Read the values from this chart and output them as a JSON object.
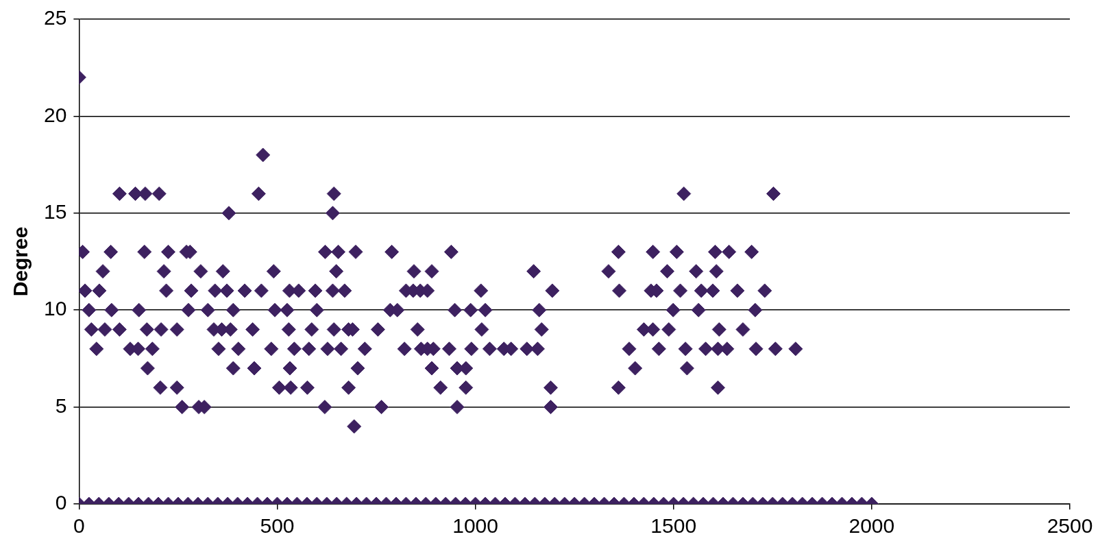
{
  "chart_data": {
    "type": "scatter",
    "ylabel": "Degree",
    "xlim": [
      0,
      2500
    ],
    "xticks": [
      0,
      500,
      1000,
      1500,
      2000,
      2500
    ],
    "ylim": [
      0,
      25
    ],
    "yticks": [
      0,
      5,
      10,
      15,
      20,
      25
    ],
    "grid": "y",
    "marker": "diamond",
    "legend": false,
    "series": [
      {
        "color": "#3d2160",
        "x": [
          0,
          464,
          102,
          142,
          167,
          202,
          453,
          643,
          1526,
          1752,
          378,
          640,
          9,
          80,
          165,
          225,
          271,
          280,
          621,
          654,
          698,
          789,
          939,
          1361,
          1448,
          1508,
          1605,
          1640,
          1697,
          60,
          214,
          307,
          363,
          491,
          649,
          845,
          890,
          1147,
          1336,
          1484,
          1557,
          1608,
          15,
          51,
          220,
          283,
          343,
          373,
          418,
          460,
          531,
          554,
          596,
          640,
          670,
          825,
          843,
          861,
          879,
          1014,
          1194,
          1363,
          1443,
          1457,
          1517,
          1570,
          1599,
          1661,
          1730,
          25,
          82,
          151,
          276,
          325,
          389,
          494,
          525,
          600,
          785,
          803,
          948,
          988,
          1025,
          1161,
          1499,
          1563,
          1706,
          31,
          65,
          102,
          171,
          207,
          247,
          340,
          360,
          382,
          438,
          529,
          587,
          643,
          680,
          690,
          754,
          854,
          1016,
          1167,
          1425,
          1448,
          1488,
          1615,
          1675,
          44,
          129,
          149,
          185,
          352,
          402,
          485,
          543,
          580,
          627,
          661,
          721,
          821,
          863,
          879,
          894,
          934,
          990,
          1036,
          1072,
          1090,
          1130,
          1157,
          1388,
          1463,
          1530,
          1581,
          1612,
          1635,
          1708,
          1757,
          1808,
          173,
          389,
          442,
          532,
          703,
          890,
          954,
          976,
          1403,
          1534,
          205,
          247,
          505,
          534,
          576,
          680,
          912,
          976,
          1190,
          1361,
          1612,
          260,
          302,
          316,
          620,
          763,
          954,
          1190,
          694,
          0,
          25,
          50,
          75,
          100,
          125,
          150,
          175,
          200,
          225,
          250,
          275,
          300,
          325,
          350,
          375,
          400,
          425,
          450,
          475,
          500,
          525,
          550,
          575,
          600,
          625,
          650,
          675,
          700,
          725,
          750,
          775,
          800,
          825,
          850,
          875,
          900,
          925,
          950,
          975,
          1000,
          1025,
          1050,
          1075,
          1100,
          1125,
          1150,
          1175,
          1200,
          1225,
          1250,
          1275,
          1300,
          1325,
          1350,
          1375,
          1400,
          1425,
          1450,
          1475,
          1500,
          1525,
          1550,
          1575,
          1600,
          1625,
          1650,
          1675,
          1700,
          1725,
          1750,
          1775,
          1800,
          1825,
          1850,
          1875,
          1900,
          1925,
          1950,
          1975,
          2000
        ],
        "values": [
          22,
          18,
          16,
          16,
          16,
          16,
          16,
          16,
          16,
          16,
          15,
          15,
          13,
          13,
          13,
          13,
          13,
          13,
          13,
          13,
          13,
          13,
          13,
          13,
          13,
          13,
          13,
          13,
          13,
          12,
          12,
          12,
          12,
          12,
          12,
          12,
          12,
          12,
          12,
          12,
          12,
          12,
          11,
          11,
          11,
          11,
          11,
          11,
          11,
          11,
          11,
          11,
          11,
          11,
          11,
          11,
          11,
          11,
          11,
          11,
          11,
          11,
          11,
          11,
          11,
          11,
          11,
          11,
          11,
          10,
          10,
          10,
          10,
          10,
          10,
          10,
          10,
          10,
          10,
          10,
          10,
          10,
          10,
          10,
          10,
          10,
          10,
          9,
          9,
          9,
          9,
          9,
          9,
          9,
          9,
          9,
          9,
          9,
          9,
          9,
          9,
          9,
          9,
          9,
          9,
          9,
          9,
          9,
          9,
          9,
          9,
          8,
          8,
          8,
          8,
          8,
          8,
          8,
          8,
          8,
          8,
          8,
          8,
          8,
          8,
          8,
          8,
          8,
          8,
          8,
          8,
          8,
          8,
          8,
          8,
          8,
          8,
          8,
          8,
          8,
          8,
          8,
          8,
          7,
          7,
          7,
          7,
          7,
          7,
          7,
          7,
          7,
          7,
          6,
          6,
          6,
          6,
          6,
          6,
          6,
          6,
          6,
          6,
          6,
          5,
          5,
          5,
          5,
          5,
          5,
          5,
          4,
          0,
          0,
          0,
          0,
          0,
          0,
          0,
          0,
          0,
          0,
          0,
          0,
          0,
          0,
          0,
          0,
          0,
          0,
          0,
          0,
          0,
          0,
          0,
          0,
          0,
          0,
          0,
          0,
          0,
          0,
          0,
          0,
          0,
          0,
          0,
          0,
          0,
          0,
          0,
          0,
          0,
          0,
          0,
          0,
          0,
          0,
          0,
          0,
          0,
          0,
          0,
          0,
          0,
          0,
          0,
          0,
          0,
          0,
          0,
          0,
          0,
          0,
          0,
          0,
          0,
          0,
          0,
          0,
          0,
          0,
          0,
          0,
          0,
          0,
          0,
          0,
          0,
          0,
          0,
          0,
          0
        ]
      }
    ]
  }
}
